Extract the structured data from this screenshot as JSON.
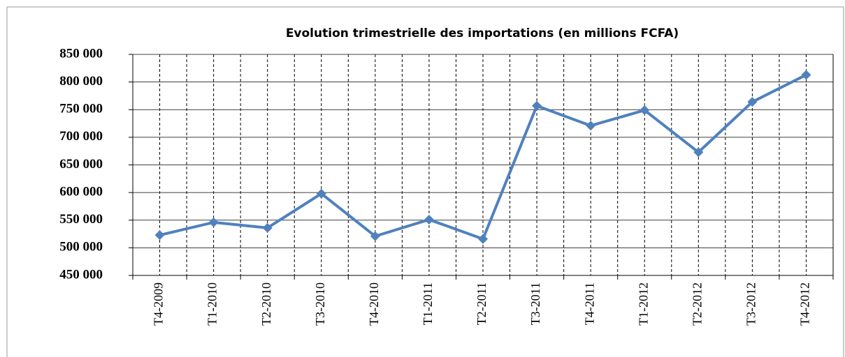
{
  "chart_data": {
    "type": "line",
    "title": "Evolution trimestrielle des importations (en millions FCFA)",
    "categories": [
      "T4-2009",
      "T1-2010",
      "T2-2010",
      "T3-2010",
      "T4-2010",
      "T1-2011",
      "T2-2011",
      "T3-2011",
      "T4-2011",
      "T1-2012",
      "T2-2012",
      "T3-2012",
      "T4-2012"
    ],
    "series": [
      {
        "name": "Importations",
        "color": "#4f81bd",
        "values": [
          523000,
          546000,
          536000,
          598000,
          521000,
          551000,
          516000,
          757000,
          721000,
          749000,
          673000,
          764000,
          813000
        ]
      }
    ],
    "ylim": [
      450000,
      850000
    ],
    "yticks": [
      {
        "value": 450000,
        "label": "450 000"
      },
      {
        "value": 500000,
        "label": "500 000"
      },
      {
        "value": 550000,
        "label": "550 000"
      },
      {
        "value": 600000,
        "label": "600 000"
      },
      {
        "value": 650000,
        "label": "650 000"
      },
      {
        "value": 700000,
        "label": "700 000"
      },
      {
        "value": 750000,
        "label": "750 000"
      },
      {
        "value": 800000,
        "label": "800 000"
      },
      {
        "value": 850000,
        "label": "850 000"
      }
    ],
    "grid": true,
    "legend": false
  }
}
